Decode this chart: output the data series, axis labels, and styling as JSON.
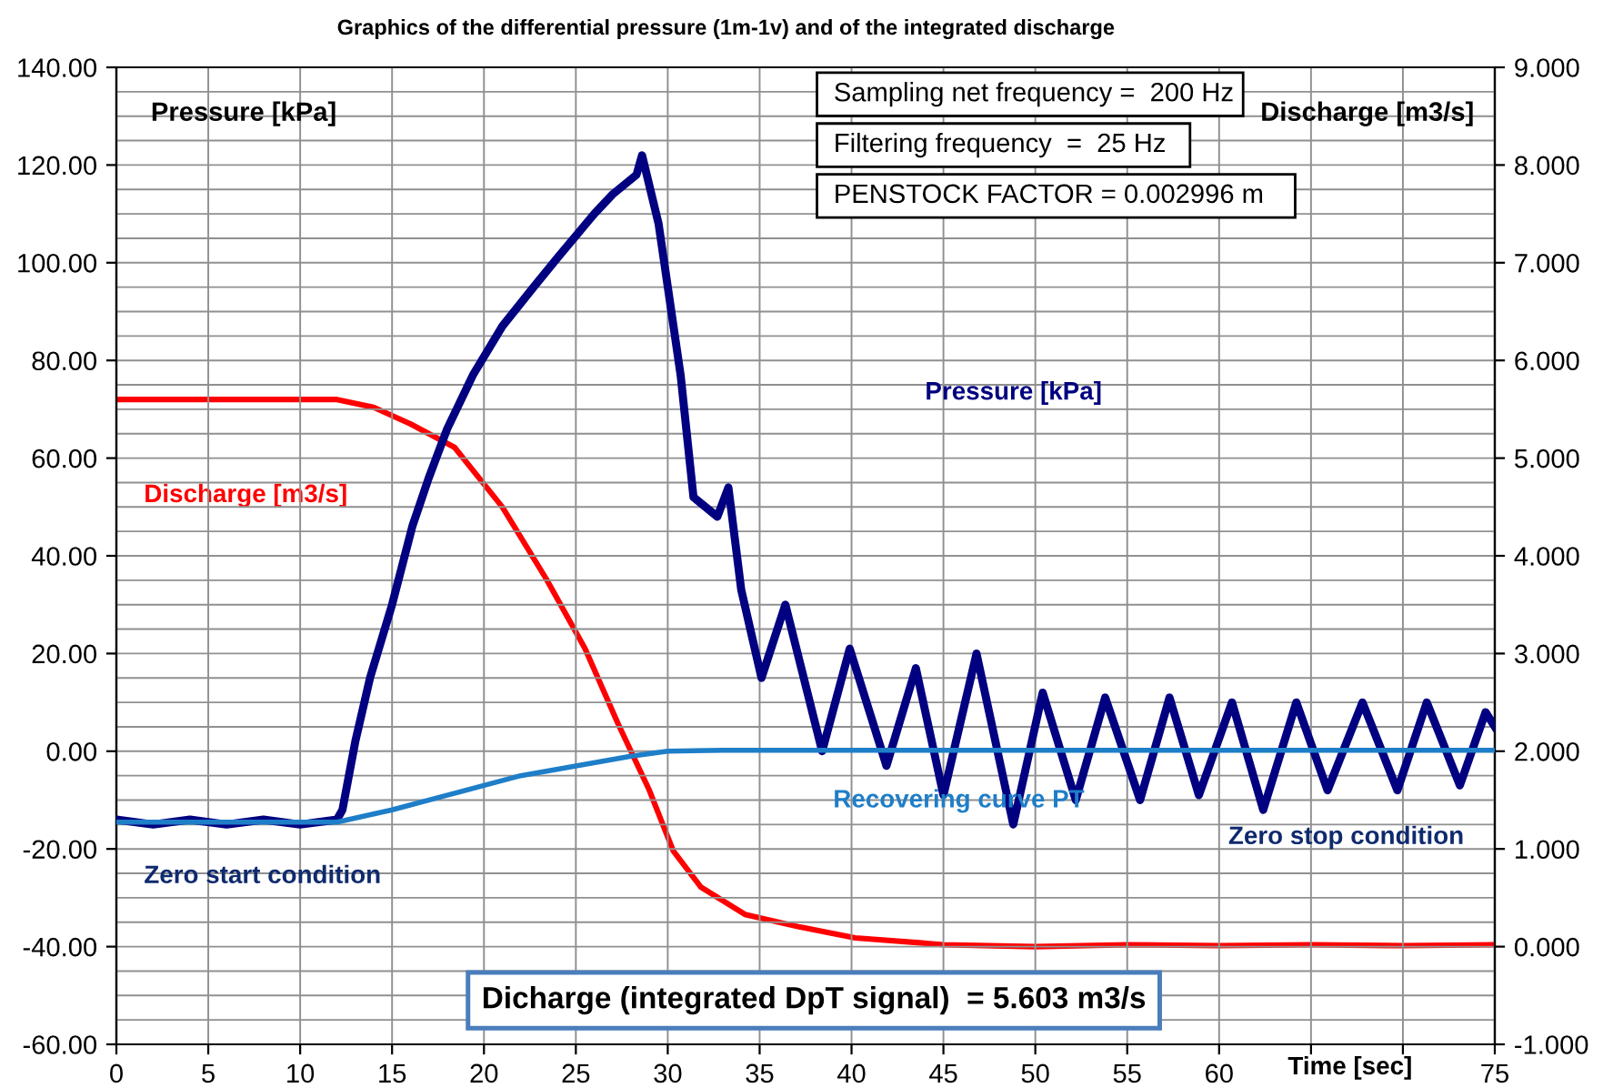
{
  "chart_data": {
    "type": "line",
    "title": "Graphics of the differential pressure (1m-1v) and of the integrated discharge",
    "xlabel": "Time [sec]",
    "ylabel": "Pressure [kPa]",
    "y2label": "Discharge [m3/s]",
    "xlim": [
      0,
      75
    ],
    "xticks": [
      0,
      5,
      10,
      15,
      20,
      25,
      30,
      35,
      40,
      45,
      50,
      55,
      60,
      {
        "value": 65,
        "label": null
      },
      {
        "value": 70,
        "label": null
      },
      75
    ],
    "ylim": [
      -60,
      140
    ],
    "yticks": [
      {
        "value": -60,
        "label": "-60.00"
      },
      {
        "value": -40,
        "label": "-40.00"
      },
      {
        "value": -20,
        "label": "-20.00"
      },
      {
        "value": 0,
        "label": "0.00"
      },
      {
        "value": 20,
        "label": "20.00"
      },
      {
        "value": 40,
        "label": "40.00"
      },
      {
        "value": 60,
        "label": "60.00"
      },
      {
        "value": 80,
        "label": "80.00"
      },
      {
        "value": 100,
        "label": "100.00"
      },
      {
        "value": 120,
        "label": "120.00"
      },
      {
        "value": 140,
        "label": "140.00"
      }
    ],
    "y2lim": [
      -1,
      9
    ],
    "y2ticks": [
      {
        "value": -1,
        "label": "-1.000"
      },
      {
        "value": 0,
        "label": "0.000"
      },
      {
        "value": 1,
        "label": "1.000"
      },
      {
        "value": 2,
        "label": "2.000"
      },
      {
        "value": 3,
        "label": "3.000"
      },
      {
        "value": 4,
        "label": "4.000"
      },
      {
        "value": 5,
        "label": "5.000"
      },
      {
        "value": 6,
        "label": "6.000"
      },
      {
        "value": 7,
        "label": "7.000"
      },
      {
        "value": 8,
        "label": "8.000"
      },
      {
        "value": 9,
        "label": "9.000"
      }
    ],
    "grid": true,
    "marker": "none",
    "line_style": "solid",
    "series": [
      {
        "name": "Pressure [kPa]",
        "color": "#000080",
        "x": [
          0,
          2,
          4,
          6,
          8,
          10,
          12,
          12.3,
          13,
          13.8,
          15,
          16.1,
          17,
          18,
          19.4,
          21,
          22.7,
          24,
          26,
          27,
          28.3,
          28.6,
          29.5,
          30.7,
          31.4,
          32.7,
          33.3,
          34,
          35.1,
          36.4,
          38.4,
          39.9,
          41.9,
          43.5,
          45,
          46.8,
          48.8,
          50.4,
          52.2,
          53.8,
          55.7,
          57.3,
          58.9,
          60.7,
          62.4,
          64.2,
          65.9,
          67.8,
          69.7,
          71.3,
          73.1,
          74.5,
          75
        ],
        "values": [
          -14,
          -15,
          -14,
          -15,
          -14,
          -15,
          -14,
          -12,
          2,
          15,
          30,
          46,
          56,
          66,
          77,
          87,
          95,
          101,
          110,
          114,
          118,
          122,
          108,
          77,
          52,
          48,
          54,
          33,
          15,
          30,
          0,
          21,
          -3,
          17,
          -9,
          20,
          -15,
          12,
          -10,
          11,
          -10,
          11,
          -9,
          10,
          -12,
          10,
          -8,
          10,
          -8,
          10,
          -7,
          8,
          5
        ]
      },
      {
        "name": "Discharge [m3/s]",
        "color": "#ff0000",
        "axis": "y2",
        "x": [
          0,
          12,
          14,
          16,
          18.4,
          21,
          23.4,
          25.5,
          27.3,
          29,
          30.3,
          31.8,
          34.2,
          37.2,
          40.2,
          45,
          50,
          55,
          60,
          65,
          70,
          75
        ],
        "values": [
          5.6,
          5.6,
          5.52,
          5.35,
          5.11,
          4.5,
          3.76,
          3.05,
          2.28,
          1.6,
          0.98,
          0.61,
          0.33,
          0.2,
          0.09,
          0.02,
          0.0,
          0.02,
          0.01,
          0.02,
          0.01,
          0.02
        ]
      },
      {
        "name": "Recovering curve PT",
        "color": "#1e7ec8",
        "x": [
          0,
          12,
          15,
          18,
          20,
          22,
          25,
          28,
          30,
          33,
          75
        ],
        "values": [
          -14.5,
          -14.5,
          -12,
          -9,
          -7,
          -5,
          -3,
          -1,
          0,
          0.2,
          0.2
        ]
      }
    ],
    "annotations": [
      "Sampling net frequency =  200 Hz",
      "Filtering frequency  =  25 Hz",
      "PENSTOCK FACTOR = 0.002996 m",
      "Dicharge (integrated DpT signal)  = 5.603 m3/s",
      "Zero start condition",
      "Zero stop condition"
    ]
  }
}
